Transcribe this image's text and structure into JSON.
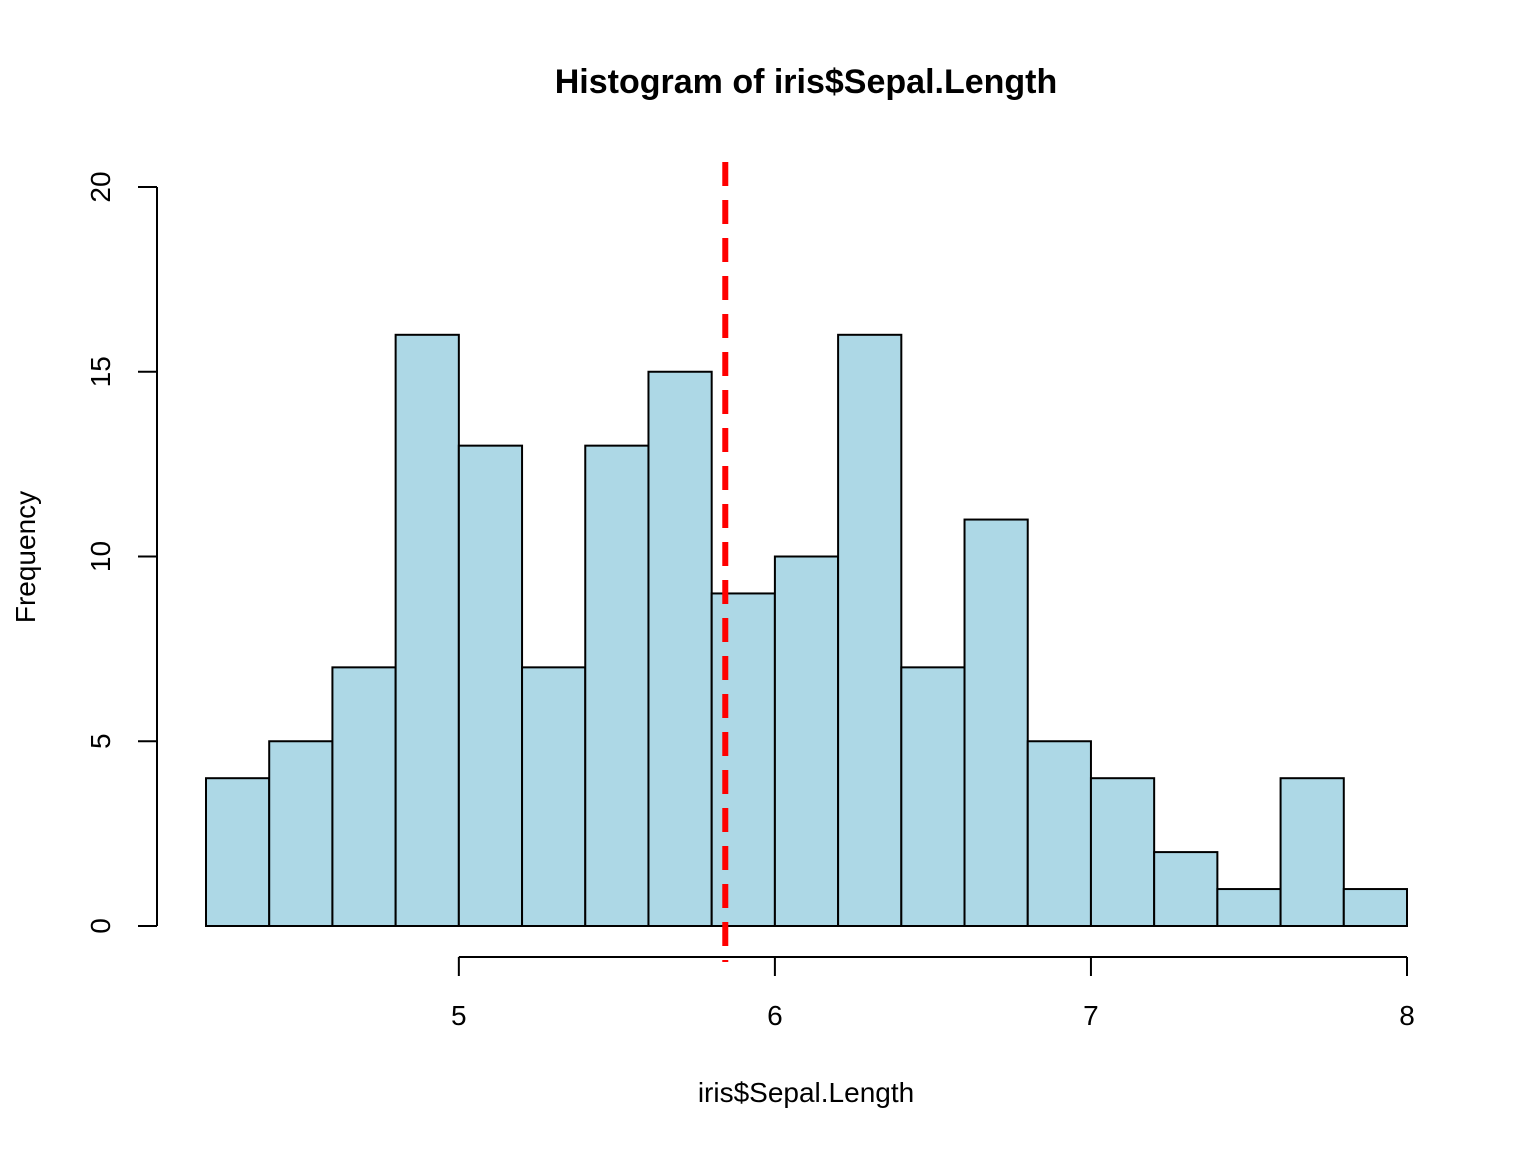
{
  "chart_data": {
    "type": "bar",
    "subtype": "histogram",
    "title": "Histogram of iris$Sepal.Length",
    "xlabel": "iris$Sepal.Length",
    "ylabel": "Frequency",
    "bin_edges": [
      4.2,
      4.4,
      4.6,
      4.8,
      5.0,
      5.2,
      5.4,
      5.6,
      5.8,
      6.0,
      6.2,
      6.4,
      6.6,
      6.8,
      7.0,
      7.2,
      7.4,
      7.6,
      7.8,
      8.0
    ],
    "values": [
      4,
      5,
      7,
      16,
      13,
      7,
      13,
      15,
      9,
      10,
      16,
      7,
      11,
      5,
      4,
      2,
      1,
      4,
      1
    ],
    "xlim": [
      4.2,
      8.0
    ],
    "ylim": [
      0,
      20
    ],
    "x_ticks": [
      5,
      6,
      7,
      8
    ],
    "x_tick_labels": [
      "5",
      "6",
      "7",
      "8"
    ],
    "y_ticks": [
      0,
      5,
      10,
      15,
      20
    ],
    "y_tick_labels": [
      "0",
      "5",
      "10",
      "15",
      "20"
    ],
    "bar_color": "#add8e6",
    "bar_border_color": "#000000",
    "reference_line": {
      "x": 5.843,
      "color": "#ff0000",
      "style": "dashed"
    },
    "grid": false,
    "legend": "none"
  }
}
